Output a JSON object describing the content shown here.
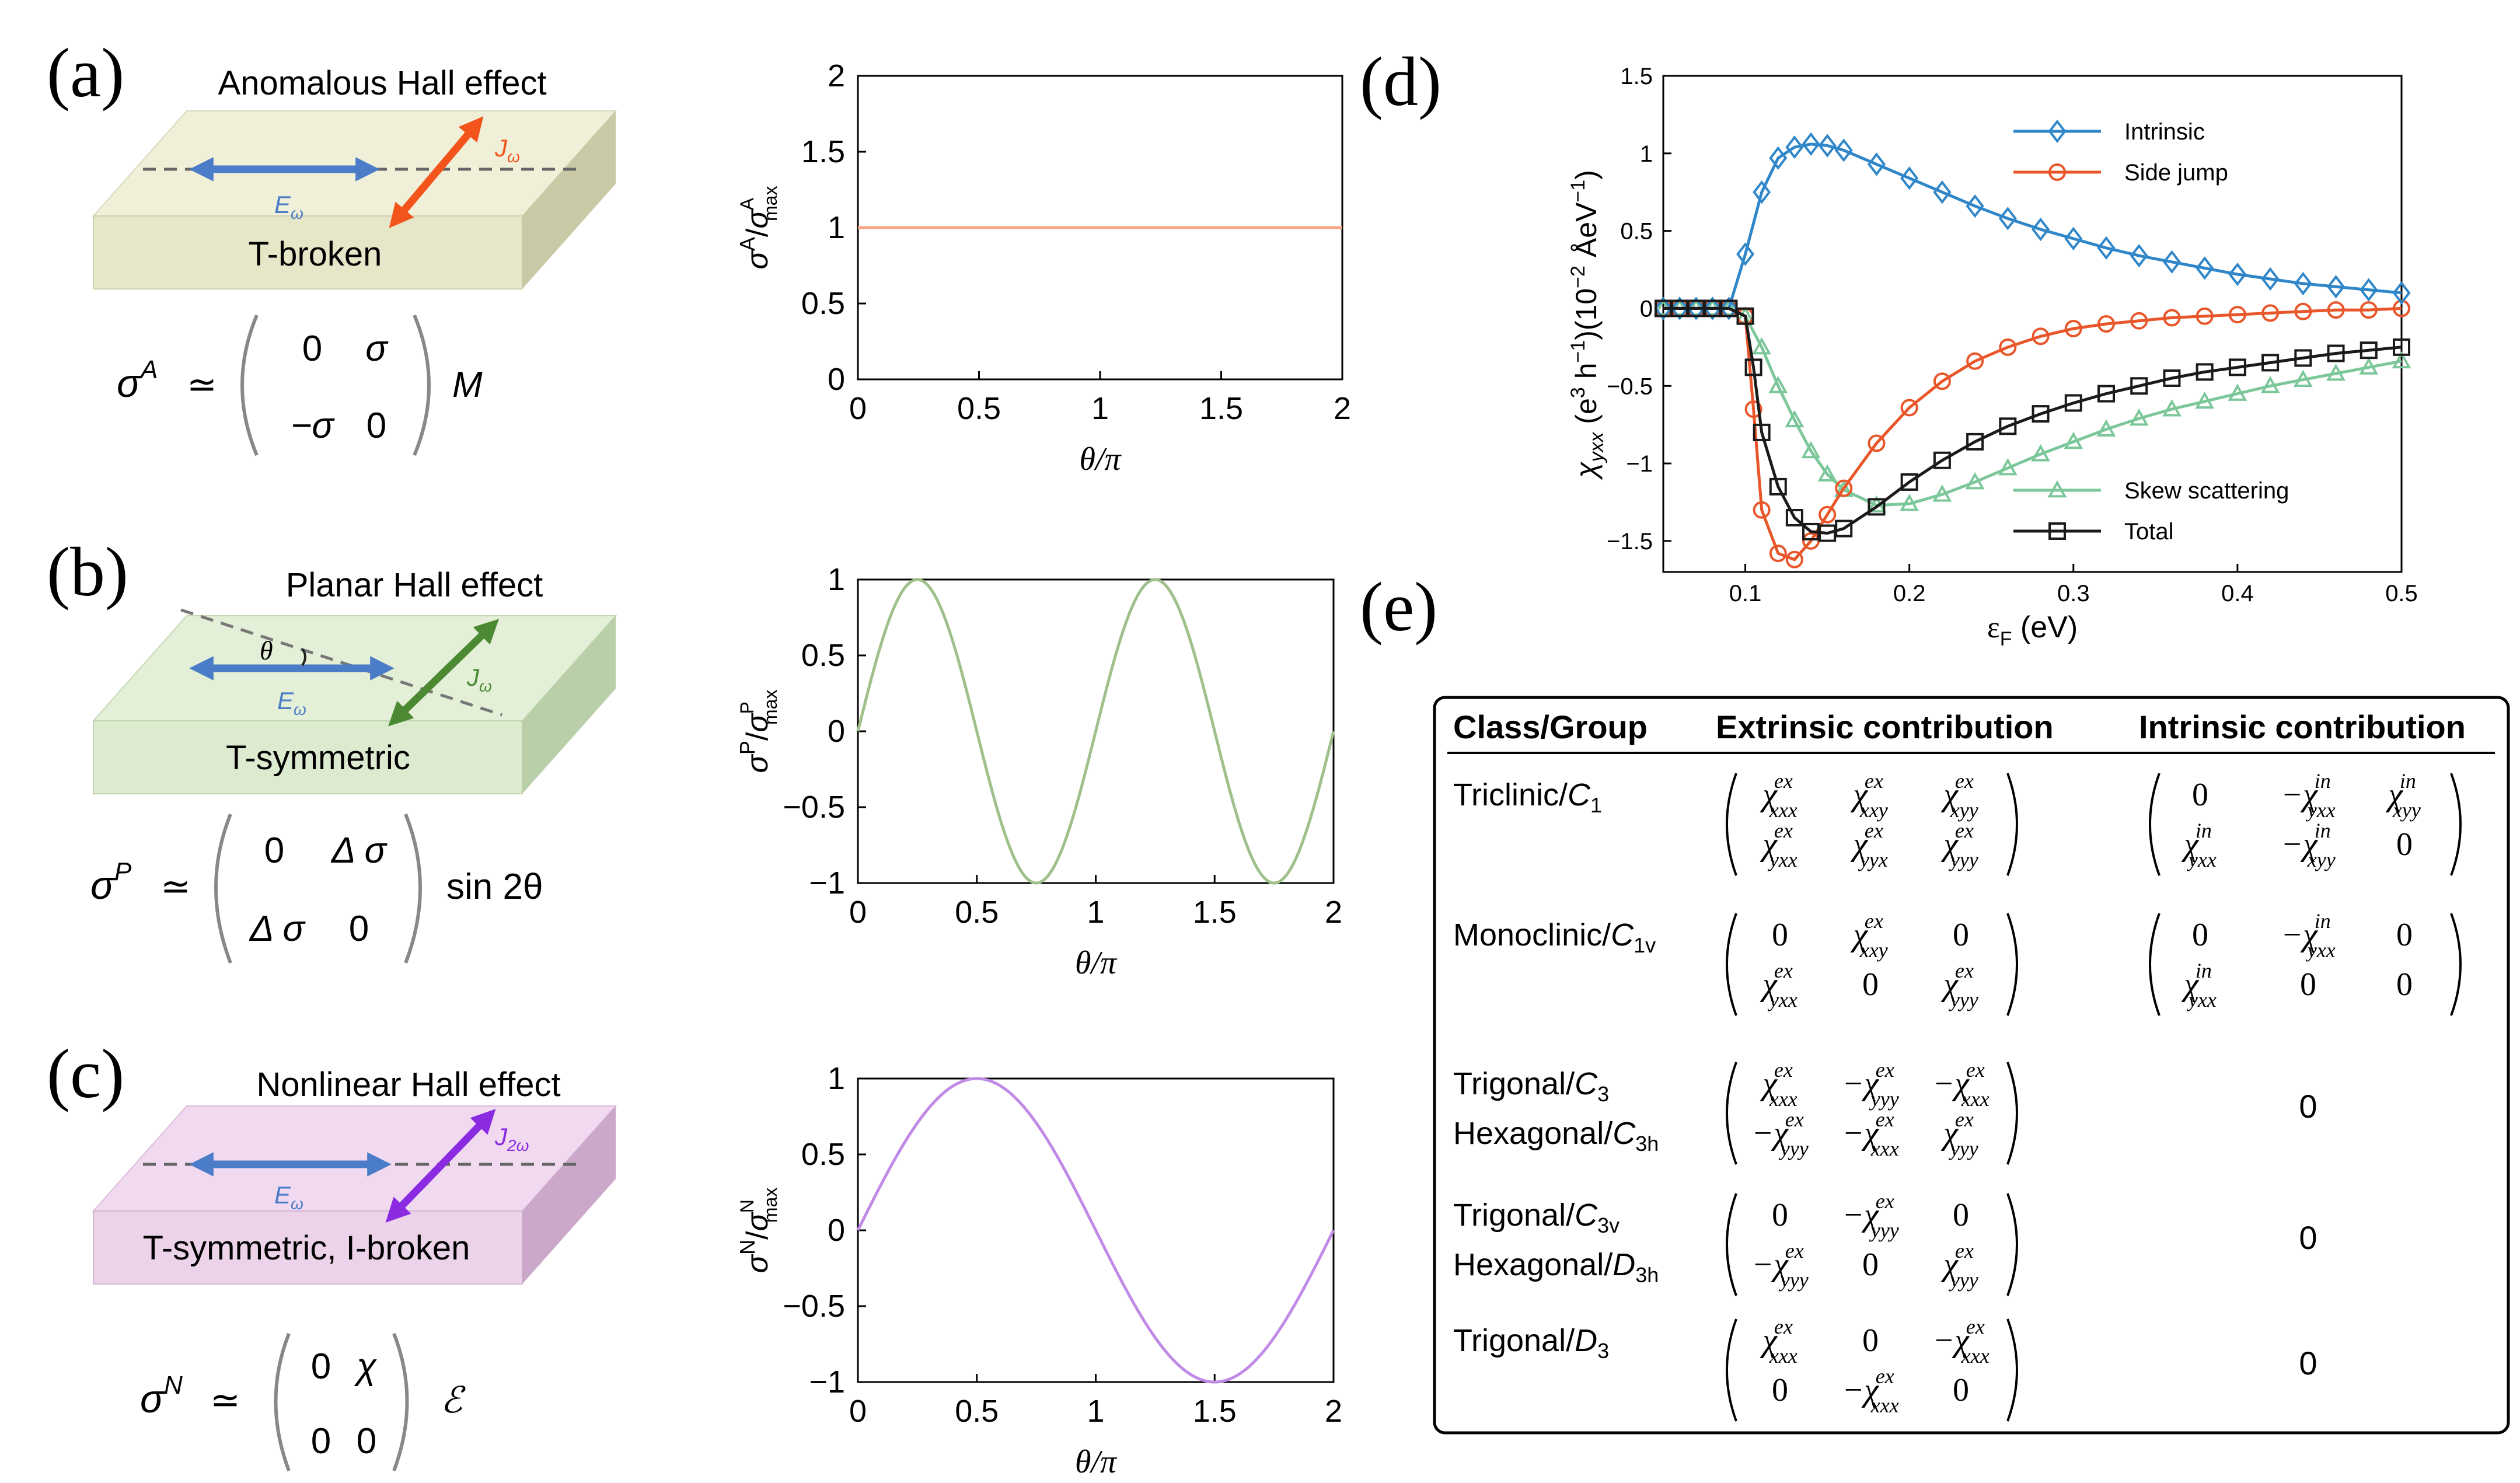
{
  "panels": {
    "a": {
      "label": "(a)",
      "title": "Anomalous Hall effect",
      "slab_label": "T-broken",
      "e_label": "E",
      "e_sub": "ω",
      "j_label": "J",
      "j_sub": "ω",
      "formula_lhs": "σ",
      "formula_sup": "A",
      "approx": "≃",
      "matrix": [
        "0",
        "σ",
        "−σ",
        "0"
      ],
      "formula_suffix": "M",
      "colors": {
        "slab_top": "#f0f0d9",
        "slab_front": "#e6e6c8",
        "slab_side": "#c9c9a6",
        "arrow_e": "#4a7cc7",
        "arrow_j": "#f2541b"
      }
    },
    "b": {
      "label": "(b)",
      "title": "Planar Hall effect",
      "slab_label": "T-symmetric",
      "e_label": "E",
      "e_sub": "ω",
      "j_label": "J",
      "j_sub": "ω",
      "theta": "θ",
      "formula_lhs": "σ",
      "formula_sup": "P",
      "approx": "≃",
      "matrix": [
        "0",
        "Δ σ",
        "Δ σ",
        "0"
      ],
      "formula_suffix": "sin 2θ",
      "colors": {
        "slab_top": "#e3efd6",
        "slab_front": "#dcebd0",
        "slab_side": "#b9cfa9",
        "arrow_e": "#4a7cc7",
        "arrow_j": "#4b8a32"
      }
    },
    "c": {
      "label": "(c)",
      "title": "Nonlinear Hall effect",
      "slab_label": "T-symmetric, I-broken",
      "e_label": "E",
      "e_sub": "ω",
      "j_label": "J",
      "j_sub": "2ω",
      "formula_lhs": "σ",
      "formula_sup": "N",
      "approx": "≃",
      "matrix": [
        "0",
        "χ",
        "0",
        "0"
      ],
      "formula_suffix": "ℰ",
      "colors": {
        "slab_top": "#f1d9f0",
        "slab_front": "#ecd3ea",
        "slab_side": "#cba8c9",
        "arrow_e": "#4a7cc7",
        "arrow_j": "#8a2be2"
      }
    },
    "d": {
      "label": "(d)"
    },
    "e": {
      "label": "(e)"
    }
  },
  "plots_abc": [
    {
      "id": "a",
      "ylabel_base": "σ",
      "ylabel_sup": "A",
      "ylabel_den": "σ",
      "ylabel_den_sub": "max",
      "ylabel_den_sup": "A",
      "xlabel": "θ/π",
      "yticks": [
        "0",
        "0.5",
        "1",
        "1.5",
        "2"
      ],
      "xticks": [
        "0",
        "0.5",
        "1",
        "1.5",
        "2"
      ],
      "color": "#f7a58a"
    },
    {
      "id": "b",
      "ylabel_base": "σ",
      "ylabel_sup": "P",
      "ylabel_den": "σ",
      "ylabel_den_sub": "max",
      "ylabel_den_sup": "P",
      "xlabel": "θ/π",
      "yticks": [
        "−1",
        "−0.5",
        "0",
        "0.5",
        "1"
      ],
      "xticks": [
        "0",
        "0.5",
        "1",
        "1.5",
        "2"
      ],
      "color": "#9fc08a"
    },
    {
      "id": "c",
      "ylabel_base": "σ",
      "ylabel_sup": "N",
      "ylabel_den": "σ",
      "ylabel_den_sub": "max",
      "ylabel_den_sup": "N",
      "xlabel": "θ/π",
      "yticks": [
        "−1",
        "−0.5",
        "0",
        "0.5",
        "1"
      ],
      "xticks": [
        "0",
        "0.5",
        "1",
        "1.5",
        "2"
      ],
      "color": "#c08ae6"
    }
  ],
  "chart_data": [
    {
      "type": "line",
      "panel": "a",
      "title": "",
      "xlabel": "θ/π",
      "ylabel": "σA/σAmax",
      "xlim": [
        0,
        2
      ],
      "ylim": [
        0,
        2
      ],
      "function": "constant",
      "series": [
        {
          "name": "σA",
          "x": [
            0,
            2
          ],
          "values": [
            1,
            1
          ]
        }
      ]
    },
    {
      "type": "line",
      "panel": "b",
      "title": "",
      "xlabel": "θ/π",
      "ylabel": "σP/σPmax",
      "xlim": [
        0,
        2
      ],
      "ylim": [
        -1,
        1
      ],
      "function": "sin(2πx)",
      "series": [
        {
          "name": "σP",
          "x": [
            0,
            0.25,
            0.5,
            0.75,
            1,
            1.25,
            1.5,
            1.75,
            2
          ],
          "values": [
            0,
            1,
            0,
            -1,
            0,
            1,
            0,
            -1,
            0
          ]
        }
      ]
    },
    {
      "type": "line",
      "panel": "c",
      "title": "",
      "xlabel": "θ/π",
      "ylabel": "σN/σNmax",
      "xlim": [
        0,
        2
      ],
      "ylim": [
        -1,
        1
      ],
      "function": "sin(πx)",
      "series": [
        {
          "name": "σN",
          "x": [
            0,
            0.5,
            1,
            1.5,
            2
          ],
          "values": [
            0,
            1,
            0,
            -1,
            0
          ]
        }
      ]
    },
    {
      "type": "line",
      "panel": "d",
      "title": "",
      "xlabel": "εF (eV)",
      "ylabel": "χyxx (e3 h−1)(10−2 ÅeV−1)",
      "xlim": [
        0.05,
        0.5
      ],
      "ylim": [
        -1.7,
        1.5
      ],
      "xticks": [
        0.1,
        0.2,
        0.3,
        0.4,
        0.5
      ],
      "yticks": [
        -1.5,
        -1,
        -0.5,
        0,
        0.5,
        1,
        1.5
      ],
      "xtick_labels": [
        "0.1",
        "0.2",
        "0.3",
        "0.4",
        "0.5"
      ],
      "ytick_labels": [
        "−1.5",
        "−1",
        "−0.5",
        "0",
        "0.5",
        "1",
        "1.5"
      ],
      "series": [
        {
          "name": "Intrinsic",
          "marker": "diamond",
          "color": "#2f86c8",
          "x": [
            0.05,
            0.06,
            0.07,
            0.08,
            0.09,
            0.1,
            0.11,
            0.12,
            0.13,
            0.14,
            0.15,
            0.16,
            0.18,
            0.2,
            0.22,
            0.24,
            0.26,
            0.28,
            0.3,
            0.32,
            0.34,
            0.36,
            0.38,
            0.4,
            0.42,
            0.44,
            0.46,
            0.48,
            0.5
          ],
          "values": [
            0,
            0,
            0,
            0,
            0,
            0.35,
            0.75,
            0.97,
            1.04,
            1.06,
            1.05,
            1.02,
            0.93,
            0.84,
            0.75,
            0.66,
            0.58,
            0.51,
            0.45,
            0.39,
            0.34,
            0.3,
            0.26,
            0.22,
            0.19,
            0.16,
            0.14,
            0.12,
            0.1
          ]
        },
        {
          "name": "Side jump",
          "marker": "circle",
          "color": "#e8562a",
          "x": [
            0.05,
            0.06,
            0.07,
            0.08,
            0.09,
            0.1,
            0.105,
            0.11,
            0.12,
            0.13,
            0.14,
            0.15,
            0.16,
            0.18,
            0.2,
            0.22,
            0.24,
            0.26,
            0.28,
            0.3,
            0.32,
            0.34,
            0.36,
            0.38,
            0.4,
            0.42,
            0.44,
            0.46,
            0.48,
            0.5
          ],
          "values": [
            0,
            0,
            0,
            0,
            0,
            -0.05,
            -0.65,
            -1.3,
            -1.58,
            -1.62,
            -1.5,
            -1.33,
            -1.16,
            -0.87,
            -0.64,
            -0.47,
            -0.34,
            -0.25,
            -0.18,
            -0.13,
            -0.1,
            -0.08,
            -0.06,
            -0.05,
            -0.04,
            -0.03,
            -0.02,
            -0.01,
            -0.01,
            0
          ]
        },
        {
          "name": "Skew scattering",
          "marker": "triangle",
          "color": "#7cc79a",
          "x": [
            0.05,
            0.06,
            0.07,
            0.08,
            0.09,
            0.1,
            0.11,
            0.12,
            0.13,
            0.14,
            0.15,
            0.16,
            0.18,
            0.2,
            0.22,
            0.24,
            0.26,
            0.28,
            0.3,
            0.32,
            0.34,
            0.36,
            0.38,
            0.4,
            0.42,
            0.44,
            0.46,
            0.48,
            0.5
          ],
          "values": [
            0,
            0,
            0,
            0,
            0,
            -0.05,
            -0.25,
            -0.5,
            -0.72,
            -0.92,
            -1.07,
            -1.17,
            -1.27,
            -1.26,
            -1.2,
            -1.12,
            -1.03,
            -0.94,
            -0.86,
            -0.78,
            -0.71,
            -0.65,
            -0.6,
            -0.55,
            -0.5,
            -0.46,
            -0.42,
            -0.38,
            -0.34
          ]
        },
        {
          "name": "Total",
          "marker": "square",
          "color": "#1a1a1a",
          "x": [
            0.05,
            0.06,
            0.07,
            0.08,
            0.09,
            0.1,
            0.105,
            0.11,
            0.12,
            0.13,
            0.14,
            0.15,
            0.16,
            0.18,
            0.2,
            0.22,
            0.24,
            0.26,
            0.28,
            0.3,
            0.32,
            0.34,
            0.36,
            0.38,
            0.4,
            0.42,
            0.44,
            0.46,
            0.48,
            0.5
          ],
          "values": [
            0,
            0,
            0,
            0,
            0,
            -0.05,
            -0.38,
            -0.8,
            -1.15,
            -1.35,
            -1.44,
            -1.45,
            -1.42,
            -1.28,
            -1.12,
            -0.98,
            -0.86,
            -0.76,
            -0.68,
            -0.61,
            -0.55,
            -0.5,
            -0.45,
            -0.41,
            -0.38,
            -0.35,
            -0.32,
            -0.29,
            -0.27,
            -0.25
          ]
        }
      ]
    }
  ],
  "table": {
    "headers": [
      "Class/Group",
      "Extrinsic contribution",
      "Intrinsic contribution"
    ],
    "rows": [
      {
        "class_lines": [
          [
            "Triclinic/",
            "C",
            "1"
          ]
        ],
        "ext": [
          [
            [
              "χ",
              "xxx",
              "ex"
            ],
            [
              "χ",
              "xxy",
              "ex"
            ],
            [
              "χ",
              "xyy",
              "ex"
            ]
          ],
          [
            [
              "χ",
              "yxx",
              "ex"
            ],
            [
              "χ",
              "yyx",
              "ex"
            ],
            [
              "χ",
              "yyy",
              "ex"
            ]
          ]
        ],
        "int": [
          [
            [
              "0",
              "",
              ""
            ],
            [
              "−χ",
              "yxx",
              "in"
            ],
            [
              "χ",
              "xyy",
              "in"
            ]
          ],
          [
            [
              "χ",
              "yxx",
              "in"
            ],
            [
              "−χ",
              "xyy",
              "in"
            ],
            [
              "0",
              "",
              ""
            ]
          ]
        ]
      },
      {
        "class_lines": [
          [
            "Monoclinic/",
            "C",
            "1v"
          ]
        ],
        "ext": [
          [
            [
              "0",
              "",
              ""
            ],
            [
              "χ",
              "xxy",
              "ex"
            ],
            [
              "0",
              "",
              ""
            ]
          ],
          [
            [
              "χ",
              "yxx",
              "ex"
            ],
            [
              "0",
              "",
              ""
            ],
            [
              "χ",
              "yyy",
              "ex"
            ]
          ]
        ],
        "int": [
          [
            [
              "0",
              "",
              ""
            ],
            [
              "−χ",
              "yxx",
              "in"
            ],
            [
              "0",
              "",
              ""
            ]
          ],
          [
            [
              "χ",
              "yxx",
              "in"
            ],
            [
              "0",
              "",
              ""
            ],
            [
              "0",
              "",
              ""
            ]
          ]
        ]
      },
      {
        "class_lines": [
          [
            "Trigonal/",
            "C",
            "3"
          ],
          [
            "Hexagonal/",
            "C",
            "3h"
          ]
        ],
        "ext": [
          [
            [
              "χ",
              "xxx",
              "ex"
            ],
            [
              "−χ",
              "yyy",
              "ex"
            ],
            [
              "−χ",
              "xxx",
              "ex"
            ]
          ],
          [
            [
              "−χ",
              "yyy",
              "ex"
            ],
            [
              "−χ",
              "xxx",
              "ex"
            ],
            [
              "χ",
              "yyy",
              "ex"
            ]
          ]
        ],
        "int_scalar": "0"
      },
      {
        "class_lines": [
          [
            "Trigonal/",
            "C",
            "3v"
          ],
          [
            "Hexagonal/",
            "D",
            "3h"
          ]
        ],
        "ext": [
          [
            [
              "0",
              "",
              ""
            ],
            [
              "−χ",
              "yyy",
              "ex"
            ],
            [
              "0",
              "",
              ""
            ]
          ],
          [
            [
              "−χ",
              "yyy",
              "ex"
            ],
            [
              "0",
              "",
              ""
            ],
            [
              "χ",
              "yyy",
              "ex"
            ]
          ]
        ],
        "int_scalar": "0"
      },
      {
        "class_lines": [
          [
            "Trigonal/",
            "D",
            "3"
          ]
        ],
        "ext": [
          [
            [
              "χ",
              "xxx",
              "ex"
            ],
            [
              "0",
              "",
              ""
            ],
            [
              "−χ",
              "xxx",
              "ex"
            ]
          ],
          [
            [
              "0",
              "",
              ""
            ],
            [
              "−χ",
              "xxx",
              "ex"
            ],
            [
              "0",
              "",
              ""
            ]
          ]
        ],
        "int_scalar": "0"
      }
    ]
  },
  "d_legend": [
    "Intrinsic",
    "Side jump",
    "Skew scattering",
    "Total"
  ],
  "d_labels": {
    "ylabel_chi": "χ",
    "ylabel_chi_sub": "yxx",
    "ylabel_rest_a": " (e",
    "ylabel_sup3": "3",
    "ylabel_rest_b": " h",
    "ylabel_supm1": "−1",
    "ylabel_rest_c": ")(10",
    "ylabel_supm2": "−2",
    "ylabel_rest_d": " ÅeV",
    "ylabel_supm1b": "−1",
    "ylabel_rest_e": ")",
    "xlabel_eps": "ε",
    "xlabel_sub": "F",
    "xlabel_unit": " (eV)"
  }
}
